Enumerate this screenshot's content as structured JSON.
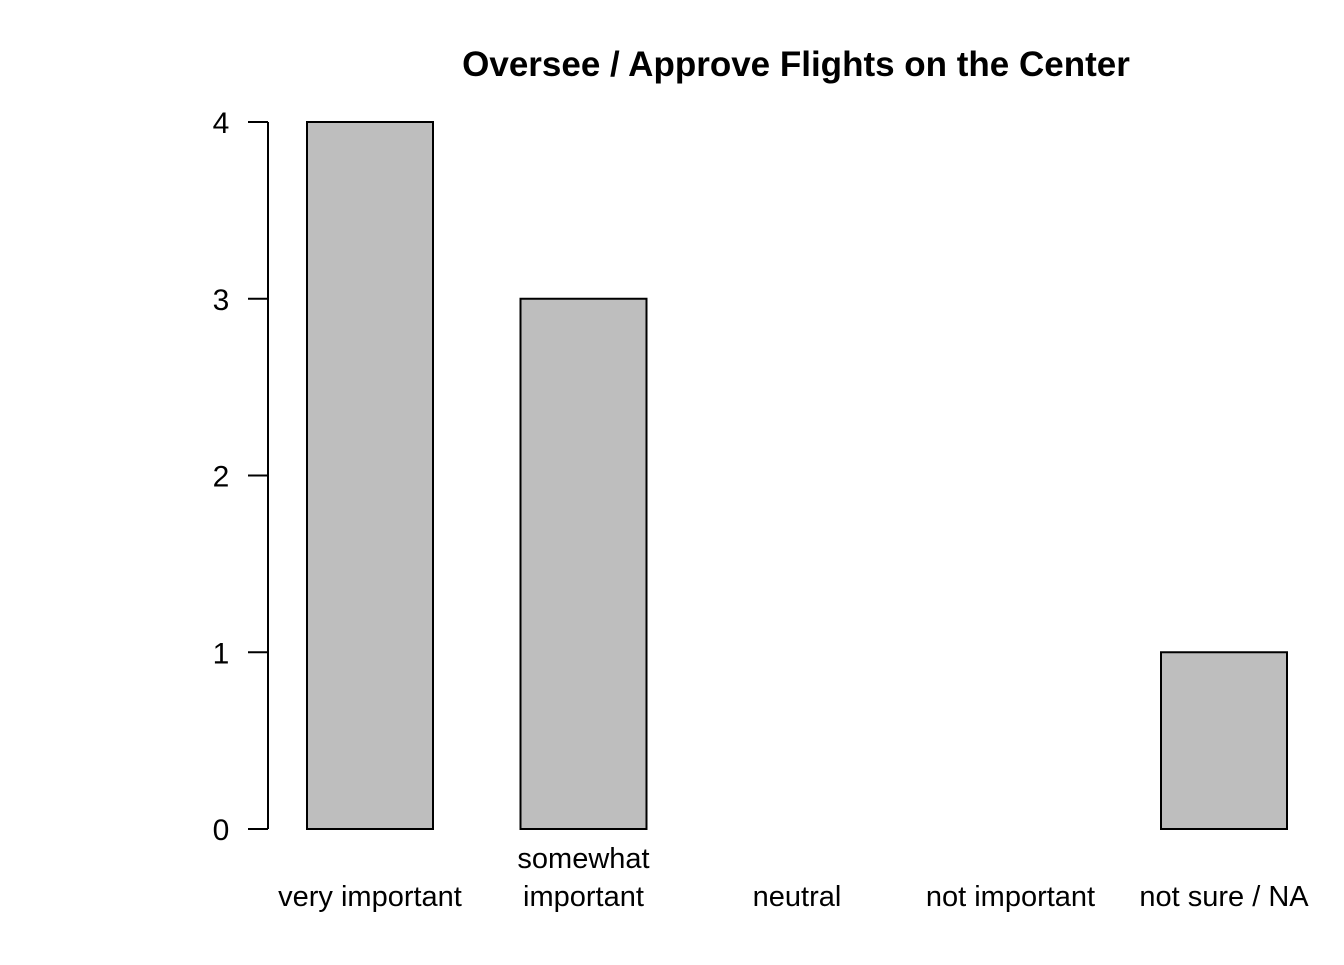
{
  "chart_data": {
    "type": "bar",
    "title": "Oversee / Approve Flights on the Center",
    "xlabel": "",
    "ylabel": "",
    "categories": [
      "very important",
      "somewhat\nimportant",
      "neutral",
      "not important",
      "not sure / NA"
    ],
    "values": [
      4,
      3,
      0,
      0,
      1
    ],
    "ylim": [
      0,
      4
    ],
    "yticks": [
      0,
      1,
      2,
      3,
      4
    ],
    "grid": false,
    "legend": "none",
    "colors": {
      "bar_fill": "#bebebe",
      "bar_stroke": "#000000",
      "axis": "#000000",
      "background": "#ffffff"
    }
  }
}
